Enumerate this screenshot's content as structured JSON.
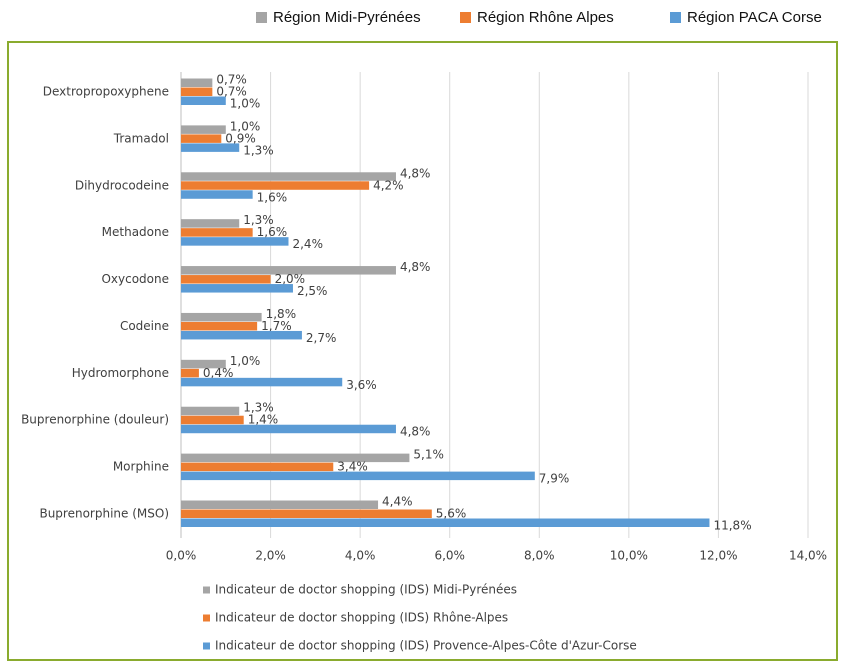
{
  "chart_data": {
    "type": "bar",
    "orientation": "horizontal",
    "top_legend": [
      "Région Midi-Pyrénées",
      "Région Rhône Alpes",
      "Région PACA Corse"
    ],
    "categories": [
      "Dextropropoxyphene",
      "Tramadol",
      "Dihydrocodeine",
      "Methadone",
      "Oxycodone",
      "Codeine",
      "Hydromorphone",
      "Buprenorphine (douleur)",
      "Morphine",
      "Buprenorphine (MSO)"
    ],
    "series": [
      {
        "name": "Indicateur de doctor shopping (IDS) Midi-Pyrénées",
        "color": "#a5a5a5",
        "values": [
          0.7,
          1.0,
          4.8,
          1.3,
          4.8,
          1.8,
          1.0,
          1.3,
          5.1,
          4.4
        ],
        "value_labels": [
          "0,7%",
          "1,0%",
          "4,8%",
          "1,3%",
          "4,8%",
          "1,8%",
          "1,0%",
          "1,3%",
          "5,1%",
          "4,4%"
        ]
      },
      {
        "name": "Indicateur de doctor shopping (IDS) Rhône-Alpes",
        "color": "#ed7d31",
        "values": [
          0.7,
          0.9,
          4.2,
          1.6,
          2.0,
          1.7,
          0.4,
          1.4,
          3.4,
          5.6
        ],
        "value_labels": [
          "0,7%",
          "0,9%",
          "4,2%",
          "1,6%",
          "2,0%",
          "1,7%",
          "0,4%",
          "1,4%",
          "3,4%",
          "5,6%"
        ]
      },
      {
        "name": "Indicateur de doctor shopping (IDS) Provence-Alpes-Côte d'Azur-Corse",
        "color": "#5b9bd5",
        "values": [
          1.0,
          1.3,
          1.6,
          2.4,
          2.5,
          2.7,
          3.6,
          4.8,
          7.9,
          11.8
        ],
        "value_labels": [
          "1,0%",
          "1,3%",
          "1,6%",
          "2,4%",
          "2,5%",
          "2,7%",
          "3,6%",
          "4,8%",
          "7,9%",
          "11,8%"
        ]
      }
    ],
    "xlim": [
      0,
      14
    ],
    "xticks": [
      {
        "value": 0,
        "label": "0,0%"
      },
      {
        "value": 2,
        "label": "2,0%"
      },
      {
        "value": 4,
        "label": "4,0%"
      },
      {
        "value": 6,
        "label": "6,0%"
      },
      {
        "value": 8,
        "label": "8,0%"
      },
      {
        "value": 10,
        "label": "10,0%"
      },
      {
        "value": 12,
        "label": "12,0%"
      },
      {
        "value": 14,
        "label": "14,0%"
      }
    ],
    "grid": true
  }
}
